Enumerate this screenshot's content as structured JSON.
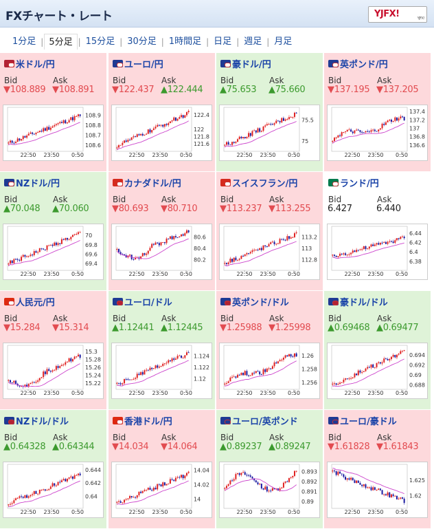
{
  "header": {
    "title": "FXチャート・レート",
    "logo": "YJFX!",
    "logo_sub": "YJFX!"
  },
  "tabs": [
    {
      "label": "1分足"
    },
    {
      "label": "5分足",
      "active": true
    },
    {
      "label": "15分足"
    },
    {
      "label": "30分足"
    },
    {
      "label": "1時間足"
    },
    {
      "label": "日足"
    },
    {
      "label": "週足"
    },
    {
      "label": "月足"
    }
  ],
  "labels": {
    "bid": "Bid",
    "ask": "Ask"
  },
  "colors": {
    "down_bg": "#fdd9dc",
    "up_bg": "#dff3d8",
    "down_text": "#e24b50",
    "up_text": "#3c9a2e",
    "candle_up": "#e02020",
    "candle_down": "#1a1aa0",
    "ma": "#cc44cc"
  },
  "pairs": [
    {
      "name": "米ドル/円",
      "trend": "down",
      "flag": "us-jp",
      "bid": "▼108.889",
      "ask": "▼108.891",
      "yticks": [
        "108.9",
        "108.8",
        "108.7",
        "108.6"
      ],
      "xticks": [
        "22:50",
        "23:50",
        "0:50"
      ],
      "chart_data": {
        "type": "candlestick",
        "ylim": [
          108.56,
          108.96
        ],
        "start": 108.62,
        "end": 108.9,
        "shape": "rise"
      }
    },
    {
      "name": "ユーロ/円",
      "trend": "down",
      "flag": "eu-jp",
      "bid": "▼122.437",
      "ask": "▲122.444",
      "yticks": [
        "122.4",
        "122",
        "121.8",
        "121.6"
      ],
      "xticks": [
        "22:50",
        "23:50",
        "0:50"
      ],
      "chart_data": {
        "type": "candlestick",
        "ylim": [
          121.45,
          122.55
        ],
        "start": 121.55,
        "end": 122.45,
        "shape": "rise"
      }
    },
    {
      "name": "豪ドル/円",
      "trend": "up",
      "flag": "au-jp",
      "bid": "▲75.653",
      "ask": "▲75.660",
      "yticks": [
        "75.5",
        "75"
      ],
      "xticks": [
        "22:50",
        "23:50",
        "0:50"
      ],
      "chart_data": {
        "type": "candlestick",
        "ylim": [
          74.8,
          75.75
        ],
        "start": 74.9,
        "end": 75.65,
        "shape": "rise"
      }
    },
    {
      "name": "英ポンド/円",
      "trend": "down",
      "flag": "gb-jp",
      "bid": "▼137.195",
      "ask": "▼137.205",
      "yticks": [
        "137.4",
        "137.2",
        "137",
        "136.8",
        "136.6"
      ],
      "xticks": [
        "22:50",
        "23:50",
        "0:50"
      ],
      "chart_data": {
        "type": "candlestick",
        "ylim": [
          136.5,
          137.45
        ],
        "start": 136.75,
        "end": 137.2,
        "shape": "rise_dip"
      }
    },
    {
      "name": "NZドル/円",
      "trend": "up",
      "flag": "nz-jp",
      "bid": "▲70.048",
      "ask": "▲70.060",
      "yticks": [
        "70",
        "69.8",
        "69.6",
        "69.4"
      ],
      "xticks": [
        "22:50",
        "23:50",
        "0:50"
      ],
      "chart_data": {
        "type": "candlestick",
        "ylim": [
          69.3,
          70.15
        ],
        "start": 69.4,
        "end": 70.05,
        "shape": "rise"
      }
    },
    {
      "name": "カナダドル/円",
      "trend": "down",
      "flag": "ca-jp",
      "bid": "▼80.693",
      "ask": "▼80.710",
      "yticks": [
        "80.6",
        "80.4",
        "80.2"
      ],
      "xticks": [
        "22:50",
        "23:50",
        "0:50"
      ],
      "chart_data": {
        "type": "candlestick",
        "ylim": [
          80.05,
          80.75
        ],
        "start": 80.35,
        "end": 80.7,
        "shape": "dip_rise"
      }
    },
    {
      "name": "スイスフラン/円",
      "trend": "down",
      "flag": "ch-jp",
      "bid": "▼113.237",
      "ask": "▼113.255",
      "yticks": [
        "113.2",
        "113",
        "112.8"
      ],
      "xticks": [
        "22:50",
        "23:50",
        "0:50"
      ],
      "chart_data": {
        "type": "candlestick",
        "ylim": [
          112.65,
          113.35
        ],
        "start": 112.75,
        "end": 113.25,
        "shape": "rise"
      }
    },
    {
      "name": "ランド/円",
      "trend": "flat",
      "flag": "za-jp",
      "bid": "6.427",
      "ask": "6.440",
      "yticks": [
        "6.44",
        "6.42",
        "6.4",
        "6.38"
      ],
      "xticks": [
        "22:50",
        "23:50",
        "0:50"
      ],
      "chart_data": {
        "type": "candlestick",
        "ylim": [
          6.365,
          6.45
        ],
        "start": 6.39,
        "end": 6.43,
        "shape": "rise"
      }
    },
    {
      "name": "人民元/円",
      "trend": "down",
      "flag": "cn-jp",
      "bid": "▼15.284",
      "ask": "▼15.314",
      "yticks": [
        "15.3",
        "15.28",
        "15.26",
        "15.24",
        "15.22"
      ],
      "xticks": [
        "22:50",
        "23:50",
        "0:50"
      ],
      "chart_data": {
        "type": "candlestick",
        "ylim": [
          15.21,
          15.31
        ],
        "start": 15.23,
        "end": 15.29,
        "shape": "dip_rise"
      }
    },
    {
      "name": "ユーロ/ドル",
      "trend": "up",
      "flag": "eu-us",
      "bid": "▲1.12441",
      "ask": "▲1.12445",
      "yticks": [
        "1.124",
        "1.122",
        "1.12"
      ],
      "xticks": [
        "22:50",
        "23:50",
        "0:50"
      ],
      "chart_data": {
        "type": "candlestick",
        "ylim": [
          1.1185,
          1.1255
        ],
        "start": 1.119,
        "end": 1.1245,
        "shape": "rise"
      }
    },
    {
      "name": "英ポンド/ドル",
      "trend": "down",
      "flag": "gb-us",
      "bid": "▼1.25988",
      "ask": "▼1.25998",
      "yticks": [
        "1.26",
        "1.258",
        "1.256"
      ],
      "xticks": [
        "22:50",
        "23:50",
        "0:50"
      ],
      "chart_data": {
        "type": "candlestick",
        "ylim": [
          1.2553,
          1.2612
        ],
        "start": 1.256,
        "end": 1.2599,
        "shape": "rise_dip"
      }
    },
    {
      "name": "豪ドル/ドル",
      "trend": "up",
      "flag": "au-us",
      "bid": "▲0.69468",
      "ask": "▲0.69477",
      "yticks": [
        "0.694",
        "0.692",
        "0.69",
        "0.688"
      ],
      "xticks": [
        "22:50",
        "23:50",
        "0:50"
      ],
      "chart_data": {
        "type": "candlestick",
        "ylim": [
          0.6875,
          0.6955
        ],
        "start": 0.688,
        "end": 0.6947,
        "shape": "rise"
      }
    },
    {
      "name": "NZドル/ドル",
      "trend": "up",
      "flag": "nz-us",
      "bid": "▲0.64328",
      "ask": "▲0.64344",
      "yticks": [
        "0.644",
        "0.642",
        "0.64"
      ],
      "xticks": [
        "22:50",
        "23:50",
        "0:50"
      ],
      "chart_data": {
        "type": "candlestick",
        "ylim": [
          0.6385,
          0.6445
        ],
        "start": 0.639,
        "end": 0.6433,
        "shape": "rise"
      }
    },
    {
      "name": "香港ドル/円",
      "trend": "down",
      "flag": "hk-jp",
      "bid": "▼14.034",
      "ask": "▼14.064",
      "yticks": [
        "14.04",
        "14.02",
        "14"
      ],
      "xticks": [
        "22:50",
        "23:50",
        "0:50"
      ],
      "chart_data": {
        "type": "candlestick",
        "ylim": [
          13.99,
          14.045
        ],
        "start": 13.995,
        "end": 14.035,
        "shape": "rise"
      }
    },
    {
      "name": "ユーロ/英ポンド",
      "trend": "up",
      "flag": "eu-gb",
      "bid": "▲0.89237",
      "ask": "▲0.89247",
      "yticks": [
        "0.893",
        "0.892",
        "0.891",
        "0.89"
      ],
      "xticks": [
        "22:50",
        "23:50",
        "0:50"
      ],
      "chart_data": {
        "type": "candlestick",
        "ylim": [
          0.8895,
          0.8935
        ],
        "start": 0.8915,
        "end": 0.8924,
        "shape": "volatile"
      }
    },
    {
      "name": "ユーロ/豪ドル",
      "trend": "down",
      "flag": "eu-au",
      "bid": "▼1.61828",
      "ask": "▼1.61843",
      "yticks": [
        "1.625",
        "1.62"
      ],
      "xticks": [
        "22:50",
        "23:50",
        "0:50"
      ],
      "chart_data": {
        "type": "candlestick",
        "ylim": [
          1.6165,
          1.6295
        ],
        "start": 1.628,
        "end": 1.6183,
        "shape": "fall"
      }
    }
  ]
}
